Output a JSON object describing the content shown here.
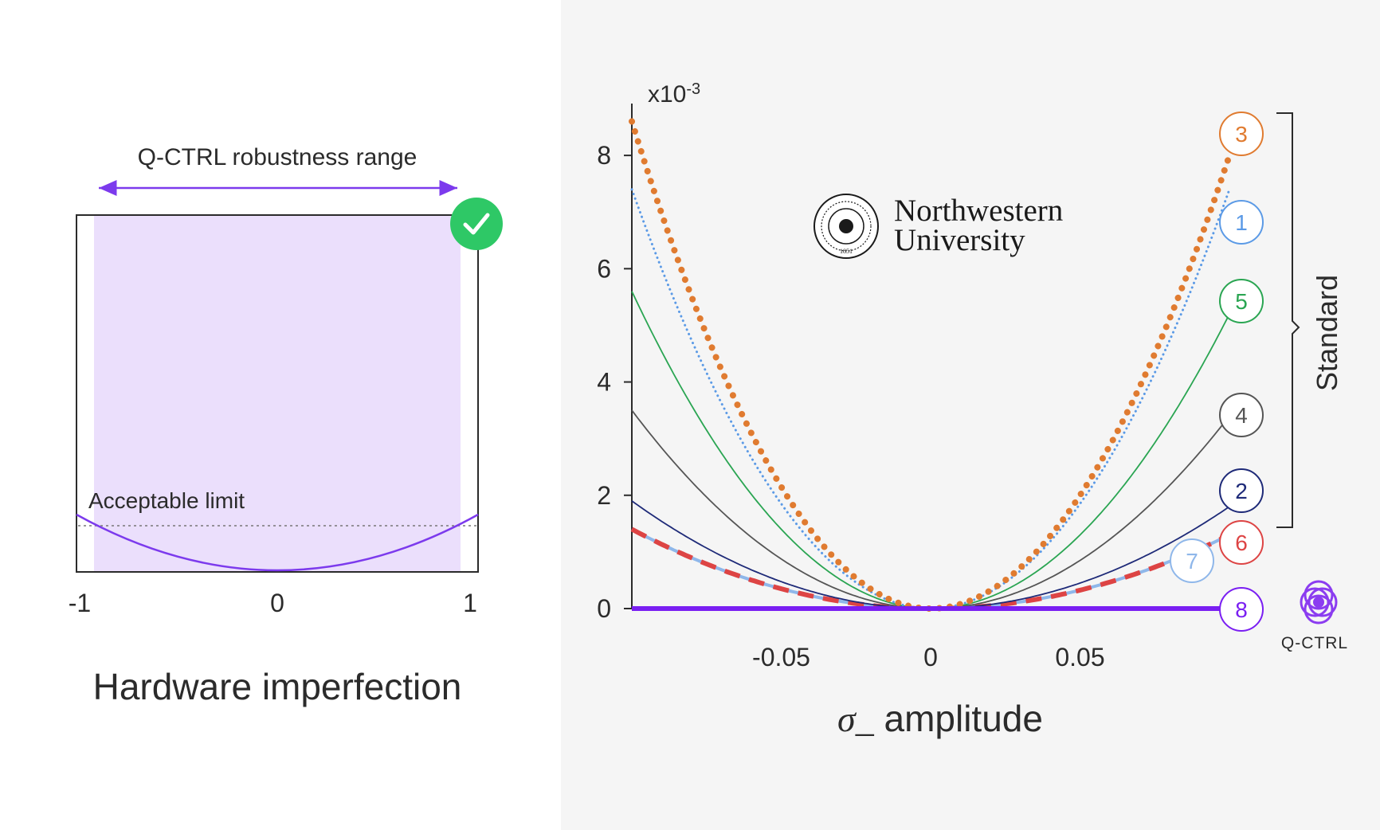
{
  "left": {
    "range_label": "Q-CTRL robustness range",
    "acceptable_label": "Acceptable limit",
    "ticks": [
      "-1",
      "0",
      "1"
    ],
    "xlabel": "Hardware imperfection",
    "check_icon": "check-circle-icon",
    "colors": {
      "band": "#ebdffc",
      "curve": "#7c3aed",
      "check": "#2ec866"
    }
  },
  "chart_data": {
    "type": "line",
    "scale_label_base": "x10",
    "scale_label_exp": "-3",
    "xlabel_symbol": "σ_",
    "xlabel_text": "amplitude",
    "x_ticks": [
      "-0.05",
      "0",
      "0.05"
    ],
    "y_ticks": [
      "0",
      "2",
      "4",
      "6",
      "8"
    ],
    "xlim": [
      -0.1,
      0.1
    ],
    "ylim": [
      0,
      9
    ],
    "series": [
      {
        "label": "3",
        "style": "dotted-thick",
        "color": "#e07b30",
        "x": [
          -0.1,
          -0.05,
          0,
          0.05,
          0.1
        ],
        "y": [
          8.6,
          2.15,
          0,
          2.15,
          8.0
        ]
      },
      {
        "label": "1",
        "style": "dotted",
        "color": "#5b9ae6",
        "x": [
          -0.1,
          -0.05,
          0,
          0.05,
          0.1
        ],
        "y": [
          7.4,
          1.85,
          0,
          1.85,
          7.4
        ]
      },
      {
        "label": "5",
        "style": "solid",
        "color": "#2aa552",
        "x": [
          -0.1,
          -0.05,
          0,
          0.05,
          0.1
        ],
        "y": [
          5.6,
          1.4,
          0,
          1.4,
          5.2
        ]
      },
      {
        "label": "4",
        "style": "solid",
        "color": "#555555",
        "x": [
          -0.1,
          -0.05,
          0,
          0.05,
          0.1
        ],
        "y": [
          3.5,
          0.87,
          0,
          0.87,
          3.4
        ]
      },
      {
        "label": "2",
        "style": "solid",
        "color": "#1e2a78",
        "x": [
          -0.1,
          -0.05,
          0,
          0.05,
          0.1
        ],
        "y": [
          1.9,
          0.47,
          0,
          0.47,
          1.8
        ]
      },
      {
        "label": "6",
        "style": "dashed-thick",
        "color": "#dd4444",
        "x": [
          -0.1,
          -0.05,
          0,
          0.05,
          0.1
        ],
        "y": [
          1.4,
          0.35,
          0,
          0.35,
          1.3
        ]
      },
      {
        "label": "7",
        "style": "solid-light",
        "color": "#8fb7ea",
        "x": [
          -0.1,
          -0.05,
          0,
          0.05,
          0.1
        ],
        "y": [
          1.4,
          0.35,
          0,
          0.35,
          1.3
        ]
      },
      {
        "label": "8",
        "style": "solid-thick",
        "color": "#7a1ff2",
        "x": [
          -0.1,
          -0.05,
          0,
          0.05,
          0.1
        ],
        "y": [
          0,
          0,
          0,
          0,
          0
        ]
      }
    ],
    "bracket_label": "Standard",
    "logo_text": "Q-CTRL",
    "university": {
      "line1": "Northwestern",
      "line2": "University",
      "seal_icon": "university-seal-icon",
      "seal_year": "1851"
    }
  }
}
